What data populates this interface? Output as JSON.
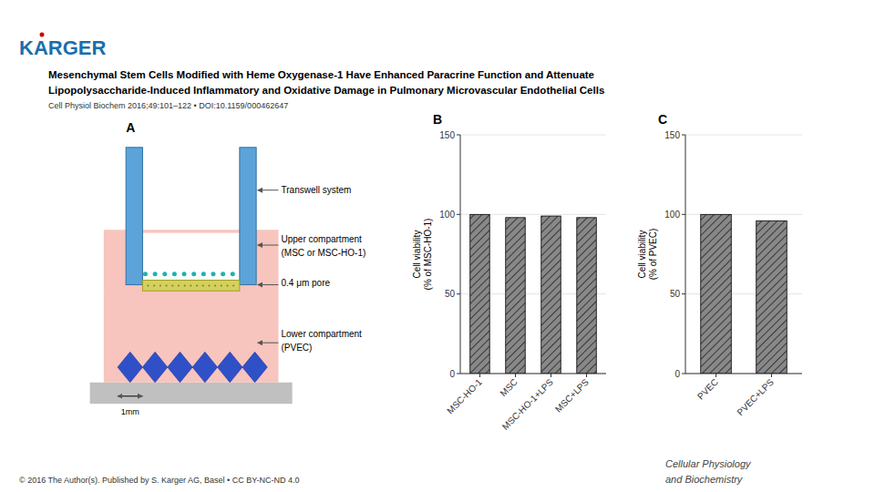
{
  "annotations": [
    "KARGER",
    "Mesenchymal Stem Cells Modified with Heme Oxygenase-1 Have Enhanced Paracrine Function and Attenuate",
    "Lipopolysaccharide-Induced Inflammatory and Oxidative Damage in Pulmonary Microvascular Endothelial Cells",
    "Cell Physiol Biochem 2016;49:101–122 •  DOI:10.1159/000462647",
    "© 2016 The Author(s). Published by S. Karger AG, Basel • CC BY-NC-ND 4.0",
    "Cellular Physiology",
    "and Biochemistry"
  ],
  "chart_data": [
    {
      "type": "diagram",
      "title": "A",
      "annotations": [
        "Transwell system",
        "Upper compartment",
        "(MSC or MSC-HO-1)",
        "0.4 μm pore",
        "Lower compartment",
        "(PVEC)",
        "1mm"
      ]
    },
    {
      "type": "bar",
      "title": "B",
      "categories": [
        "MSC-HO-1",
        "MSC",
        "MSC-HO-1+LPS",
        "MSC+LPS"
      ],
      "values": [
        100,
        98,
        99,
        98
      ],
      "color": "#888888",
      "y_label": "Cell viability\n(% of MSC-HO-1)",
      "ylim": [
        0,
        150
      ],
      "yticks": [
        0,
        50,
        100,
        150
      ]
    },
    {
      "type": "bar",
      "title": "C",
      "categories": [
        "PVEC",
        "PVEC+LPS"
      ],
      "values": [
        100,
        96
      ],
      "color": "#888888",
      "y_label": "Cell viability\n(% of PVEC)",
      "ylim": [
        0,
        150
      ],
      "yticks": [
        0,
        50,
        100,
        150
      ]
    }
  ]
}
